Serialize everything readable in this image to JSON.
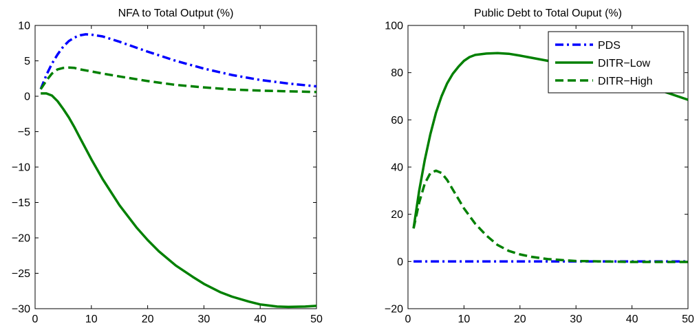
{
  "chart_data": [
    {
      "type": "line",
      "title": "NFA to Total Output (%)",
      "xlabel": "",
      "ylabel": "",
      "xlim": [
        0,
        50
      ],
      "ylim": [
        -30,
        10
      ],
      "xticks": [
        0,
        10,
        20,
        30,
        40,
        50
      ],
      "yticks": [
        10,
        5,
        0,
        -5,
        -10,
        -15,
        -20,
        -25,
        -30
      ],
      "grid": false,
      "legend": null,
      "series": [
        {
          "key": "pds",
          "color": "#0000ff",
          "style": "dashdot",
          "points": [
            [
              1,
              1.0
            ],
            [
              2,
              3.0
            ],
            [
              3,
              4.6
            ],
            [
              4,
              5.9
            ],
            [
              5,
              7.0
            ],
            [
              6,
              7.8
            ],
            [
              7,
              8.3
            ],
            [
              8,
              8.6
            ],
            [
              9,
              8.75
            ],
            [
              10,
              8.7
            ],
            [
              12,
              8.45
            ],
            [
              15,
              7.7
            ],
            [
              20,
              6.3
            ],
            [
              25,
              5.0
            ],
            [
              30,
              3.9
            ],
            [
              35,
              3.0
            ],
            [
              40,
              2.3
            ],
            [
              45,
              1.8
            ],
            [
              50,
              1.4
            ]
          ]
        },
        {
          "key": "ditr_low",
          "color": "#008000",
          "style": "solid",
          "points": [
            [
              1,
              0.4
            ],
            [
              2,
              0.4
            ],
            [
              3,
              0.1
            ],
            [
              4,
              -0.7
            ],
            [
              5,
              -1.8
            ],
            [
              6,
              -3.0
            ],
            [
              7,
              -4.4
            ],
            [
              8,
              -5.9
            ],
            [
              10,
              -8.9
            ],
            [
              12,
              -11.7
            ],
            [
              15,
              -15.4
            ],
            [
              18,
              -18.5
            ],
            [
              20,
              -20.3
            ],
            [
              22,
              -21.9
            ],
            [
              25,
              -23.9
            ],
            [
              28,
              -25.5
            ],
            [
              30,
              -26.5
            ],
            [
              33,
              -27.7
            ],
            [
              35,
              -28.3
            ],
            [
              38,
              -29.0
            ],
            [
              40,
              -29.4
            ],
            [
              43,
              -29.7
            ],
            [
              45,
              -29.75
            ],
            [
              48,
              -29.7
            ],
            [
              50,
              -29.6
            ]
          ]
        },
        {
          "key": "ditr_high",
          "color": "#008000",
          "style": "dashed",
          "points": [
            [
              1,
              1.0
            ],
            [
              2,
              2.2
            ],
            [
              3,
              3.2
            ],
            [
              4,
              3.8
            ],
            [
              5,
              4.0
            ],
            [
              6,
              4.05
            ],
            [
              7,
              4.0
            ],
            [
              8,
              3.8
            ],
            [
              10,
              3.5
            ],
            [
              12,
              3.2
            ],
            [
              15,
              2.8
            ],
            [
              20,
              2.15
            ],
            [
              25,
              1.6
            ],
            [
              30,
              1.25
            ],
            [
              35,
              0.95
            ],
            [
              40,
              0.8
            ],
            [
              45,
              0.7
            ],
            [
              50,
              0.6
            ]
          ]
        }
      ]
    },
    {
      "type": "line",
      "title": "Public Debt to Total Ouput (%)",
      "xlabel": "",
      "ylabel": "",
      "xlim": [
        0,
        50
      ],
      "ylim": [
        -20,
        100
      ],
      "xticks": [
        0,
        10,
        20,
        30,
        40,
        50
      ],
      "yticks": [
        100,
        80,
        60,
        40,
        20,
        0,
        -20
      ],
      "grid": false,
      "legend": {
        "position": "top-right",
        "entries": [
          {
            "label": "PDS",
            "series": "pds"
          },
          {
            "label": "DITR−Low",
            "series": "ditr_low"
          },
          {
            "label": "DITR−High",
            "series": "ditr_high"
          }
        ]
      },
      "series": [
        {
          "key": "pds",
          "color": "#0000ff",
          "style": "dashdot",
          "points": [
            [
              1,
              0
            ],
            [
              10,
              0
            ],
            [
              20,
              0
            ],
            [
              30,
              0
            ],
            [
              40,
              0
            ],
            [
              50,
              0
            ]
          ]
        },
        {
          "key": "ditr_low",
          "color": "#008000",
          "style": "solid",
          "points": [
            [
              1,
              14
            ],
            [
              2,
              30
            ],
            [
              3,
              43
            ],
            [
              4,
              54
            ],
            [
              5,
              63
            ],
            [
              6,
              70
            ],
            [
              7,
              75.5
            ],
            [
              8,
              79.5
            ],
            [
              9,
              82.5
            ],
            [
              10,
              85
            ],
            [
              11,
              86.6
            ],
            [
              12,
              87.5
            ],
            [
              14,
              88.1
            ],
            [
              16,
              88.3
            ],
            [
              18,
              88.0
            ],
            [
              20,
              87.2
            ],
            [
              25,
              85.0
            ],
            [
              30,
              82.0
            ],
            [
              35,
              79.0
            ],
            [
              40,
              76.0
            ],
            [
              45,
              72.5
            ],
            [
              50,
              68.5
            ]
          ]
        },
        {
          "key": "ditr_high",
          "color": "#008000",
          "style": "dashed",
          "points": [
            [
              1,
              14
            ],
            [
              2,
              25
            ],
            [
              3,
              33
            ],
            [
              4,
              37.5
            ],
            [
              5,
              38.5
            ],
            [
              6,
              37.5
            ],
            [
              7,
              34.5
            ],
            [
              8,
              30.5
            ],
            [
              9,
              26.5
            ],
            [
              10,
              22.5
            ],
            [
              12,
              16
            ],
            [
              14,
              11
            ],
            [
              16,
              7
            ],
            [
              18,
              4.5
            ],
            [
              20,
              3
            ],
            [
              22,
              2
            ],
            [
              25,
              1
            ],
            [
              28,
              0.5
            ],
            [
              30,
              0.2
            ],
            [
              35,
              0
            ],
            [
              40,
              -0.2
            ],
            [
              45,
              -0.2
            ],
            [
              50,
              -0.2
            ]
          ]
        }
      ]
    }
  ]
}
